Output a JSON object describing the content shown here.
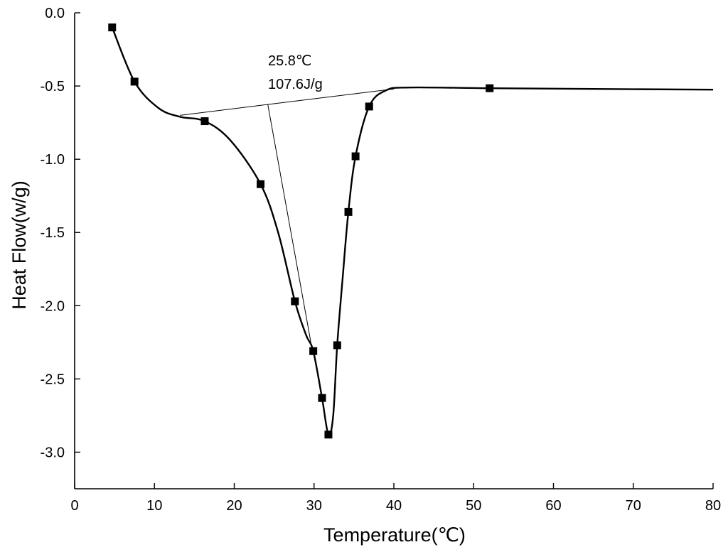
{
  "chart_data": {
    "type": "line",
    "title": "",
    "xlabel": "Temperature(℃)",
    "ylabel": "Heat Flow(w/g)",
    "xlim": [
      0,
      80
    ],
    "ylim": [
      -3.25,
      0
    ],
    "x_ticks": [
      0,
      10,
      20,
      30,
      40,
      50,
      60,
      70,
      80
    ],
    "x_tick_labels": [
      "0",
      "10",
      "20",
      "30",
      "40",
      "50",
      "60",
      "70",
      "80"
    ],
    "y_ticks": [
      0,
      -0.5,
      -1,
      -1.5,
      -2,
      -2.5,
      -3
    ],
    "y_tick_labels": [
      "0.0",
      "-0.5",
      "-1.0",
      "-1.5",
      "-2.0",
      "-2.5",
      "-3.0"
    ],
    "grid": false,
    "legend": "none",
    "series": [
      {
        "x": [
          4.7,
          7.5,
          10.5,
          13.2,
          16.3,
          19.5,
          23.3,
          25.5,
          27.6,
          29.0,
          29.9,
          31.0,
          31.8,
          32.4,
          32.9,
          33.6,
          34.3,
          35.2,
          36.9,
          39.0,
          42.0,
          52.0,
          65.0,
          80.0
        ],
        "y": [
          -0.1,
          -0.47,
          -0.65,
          -0.71,
          -0.74,
          -0.87,
          -1.17,
          -1.5,
          -1.97,
          -2.2,
          -2.31,
          -2.63,
          -2.88,
          -2.75,
          -2.27,
          -1.8,
          -1.36,
          -0.98,
          -0.64,
          -0.53,
          -0.51,
          -0.515,
          -0.52,
          -0.525
        ],
        "marker_indices": [
          0,
          1,
          4,
          6,
          8,
          10,
          11,
          12,
          14,
          16,
          17,
          18,
          21
        ]
      }
    ],
    "annotations": [
      {
        "text": "25.8℃"
      },
      {
        "text": "107.6J/g"
      }
    ],
    "baseline": {
      "from": [
        13.2,
        -0.7
      ],
      "to": [
        40.0,
        -0.52
      ]
    },
    "onset_line": {
      "from": [
        24.2,
        -0.625
      ],
      "to": [
        29.6,
        -2.25
      ]
    },
    "line_color": "#000000"
  }
}
